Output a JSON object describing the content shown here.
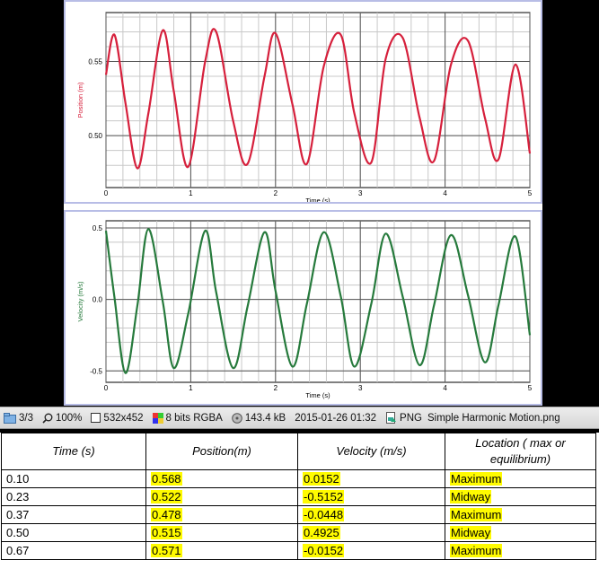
{
  "plots": [
    {
      "id": "position",
      "ylabel": "Position (m)",
      "xlabel": "Time (s)",
      "color": "#d6203c",
      "yticks": [
        "0.55",
        "0.50"
      ],
      "xticks": [
        "0",
        "1",
        "2",
        "3",
        "4",
        "5"
      ]
    },
    {
      "id": "velocity",
      "ylabel": "Velocity (m/s)",
      "xlabel": "Time (s)",
      "color": "#267a3c",
      "yticks": [
        "0.5",
        "0.0",
        "-0.5"
      ],
      "xticks": [
        "0",
        "1",
        "2",
        "3",
        "4",
        "5"
      ]
    }
  ],
  "chart_data": [
    {
      "type": "line",
      "ylabel": "Position (m)",
      "xlabel": "Time (s)",
      "xlim": [
        0,
        5
      ],
      "ylim": [
        0.465,
        0.583
      ],
      "x": [
        0.0,
        0.1,
        0.23,
        0.37,
        0.5,
        0.67,
        0.8,
        0.97,
        1.17,
        1.3,
        1.5,
        1.67,
        1.87,
        2.0,
        2.2,
        2.37,
        2.57,
        2.77,
        2.93,
        3.13,
        3.3,
        3.5,
        3.7,
        3.87,
        4.07,
        4.27,
        4.47,
        4.63,
        4.83,
        5.0
      ],
      "y": [
        0.541,
        0.568,
        0.522,
        0.478,
        0.515,
        0.571,
        0.53,
        0.479,
        0.55,
        0.57,
        0.51,
        0.481,
        0.54,
        0.569,
        0.521,
        0.481,
        0.547,
        0.568,
        0.515,
        0.482,
        0.552,
        0.566,
        0.512,
        0.483,
        0.548,
        0.564,
        0.512,
        0.484,
        0.548,
        0.488
      ]
    },
    {
      "type": "line",
      "ylabel": "Velocity (m/s)",
      "xlabel": "Time (s)",
      "xlim": [
        0,
        5
      ],
      "ylim": [
        -0.58,
        0.55
      ],
      "x": [
        0.0,
        0.1,
        0.23,
        0.37,
        0.5,
        0.67,
        0.8,
        0.97,
        1.17,
        1.3,
        1.5,
        1.67,
        1.87,
        2.0,
        2.2,
        2.37,
        2.57,
        2.77,
        2.93,
        3.13,
        3.3,
        3.5,
        3.7,
        3.87,
        4.07,
        4.27,
        4.47,
        4.63,
        4.83,
        5.0
      ],
      "y": [
        0.48,
        0.0152,
        -0.5152,
        -0.0448,
        0.4925,
        -0.0152,
        -0.48,
        -0.1,
        0.48,
        0.05,
        -0.48,
        -0.05,
        0.47,
        0.06,
        -0.47,
        -0.03,
        0.47,
        0.02,
        -0.47,
        -0.03,
        0.46,
        0.02,
        -0.46,
        -0.04,
        0.45,
        0.03,
        -0.44,
        -0.04,
        0.44,
        -0.25
      ]
    }
  ],
  "statusbar": {
    "page": "3/3",
    "zoom": "100%",
    "size": "532x452",
    "depth": "8 bits RGBA",
    "filesize": "143.4 kB",
    "date": "2015-01-26 01:32",
    "format": "PNG",
    "filename": "Simple Harmonic Motion.png"
  },
  "table": {
    "headers": [
      "Time (s)",
      "Position(m)",
      "Velocity (m/s)",
      "Location ( max  or equilibrium)"
    ],
    "rows": [
      [
        "0.10",
        "0.568",
        "0.0152",
        "Maximum"
      ],
      [
        "0.23",
        "0.522",
        "-0.5152",
        "Midway"
      ],
      [
        "0.37",
        "0.478",
        "-0.0448",
        "Maximum"
      ],
      [
        "0.50",
        "0.515",
        "0.4925",
        "Midway"
      ],
      [
        "0.67",
        "0.571",
        "-0.0152",
        "Maximum"
      ]
    ]
  },
  "colors": {
    "highlight": "#fffb00",
    "frame": "#b8bde6",
    "position_line": "#d6203c",
    "velocity_line": "#267a3c"
  }
}
